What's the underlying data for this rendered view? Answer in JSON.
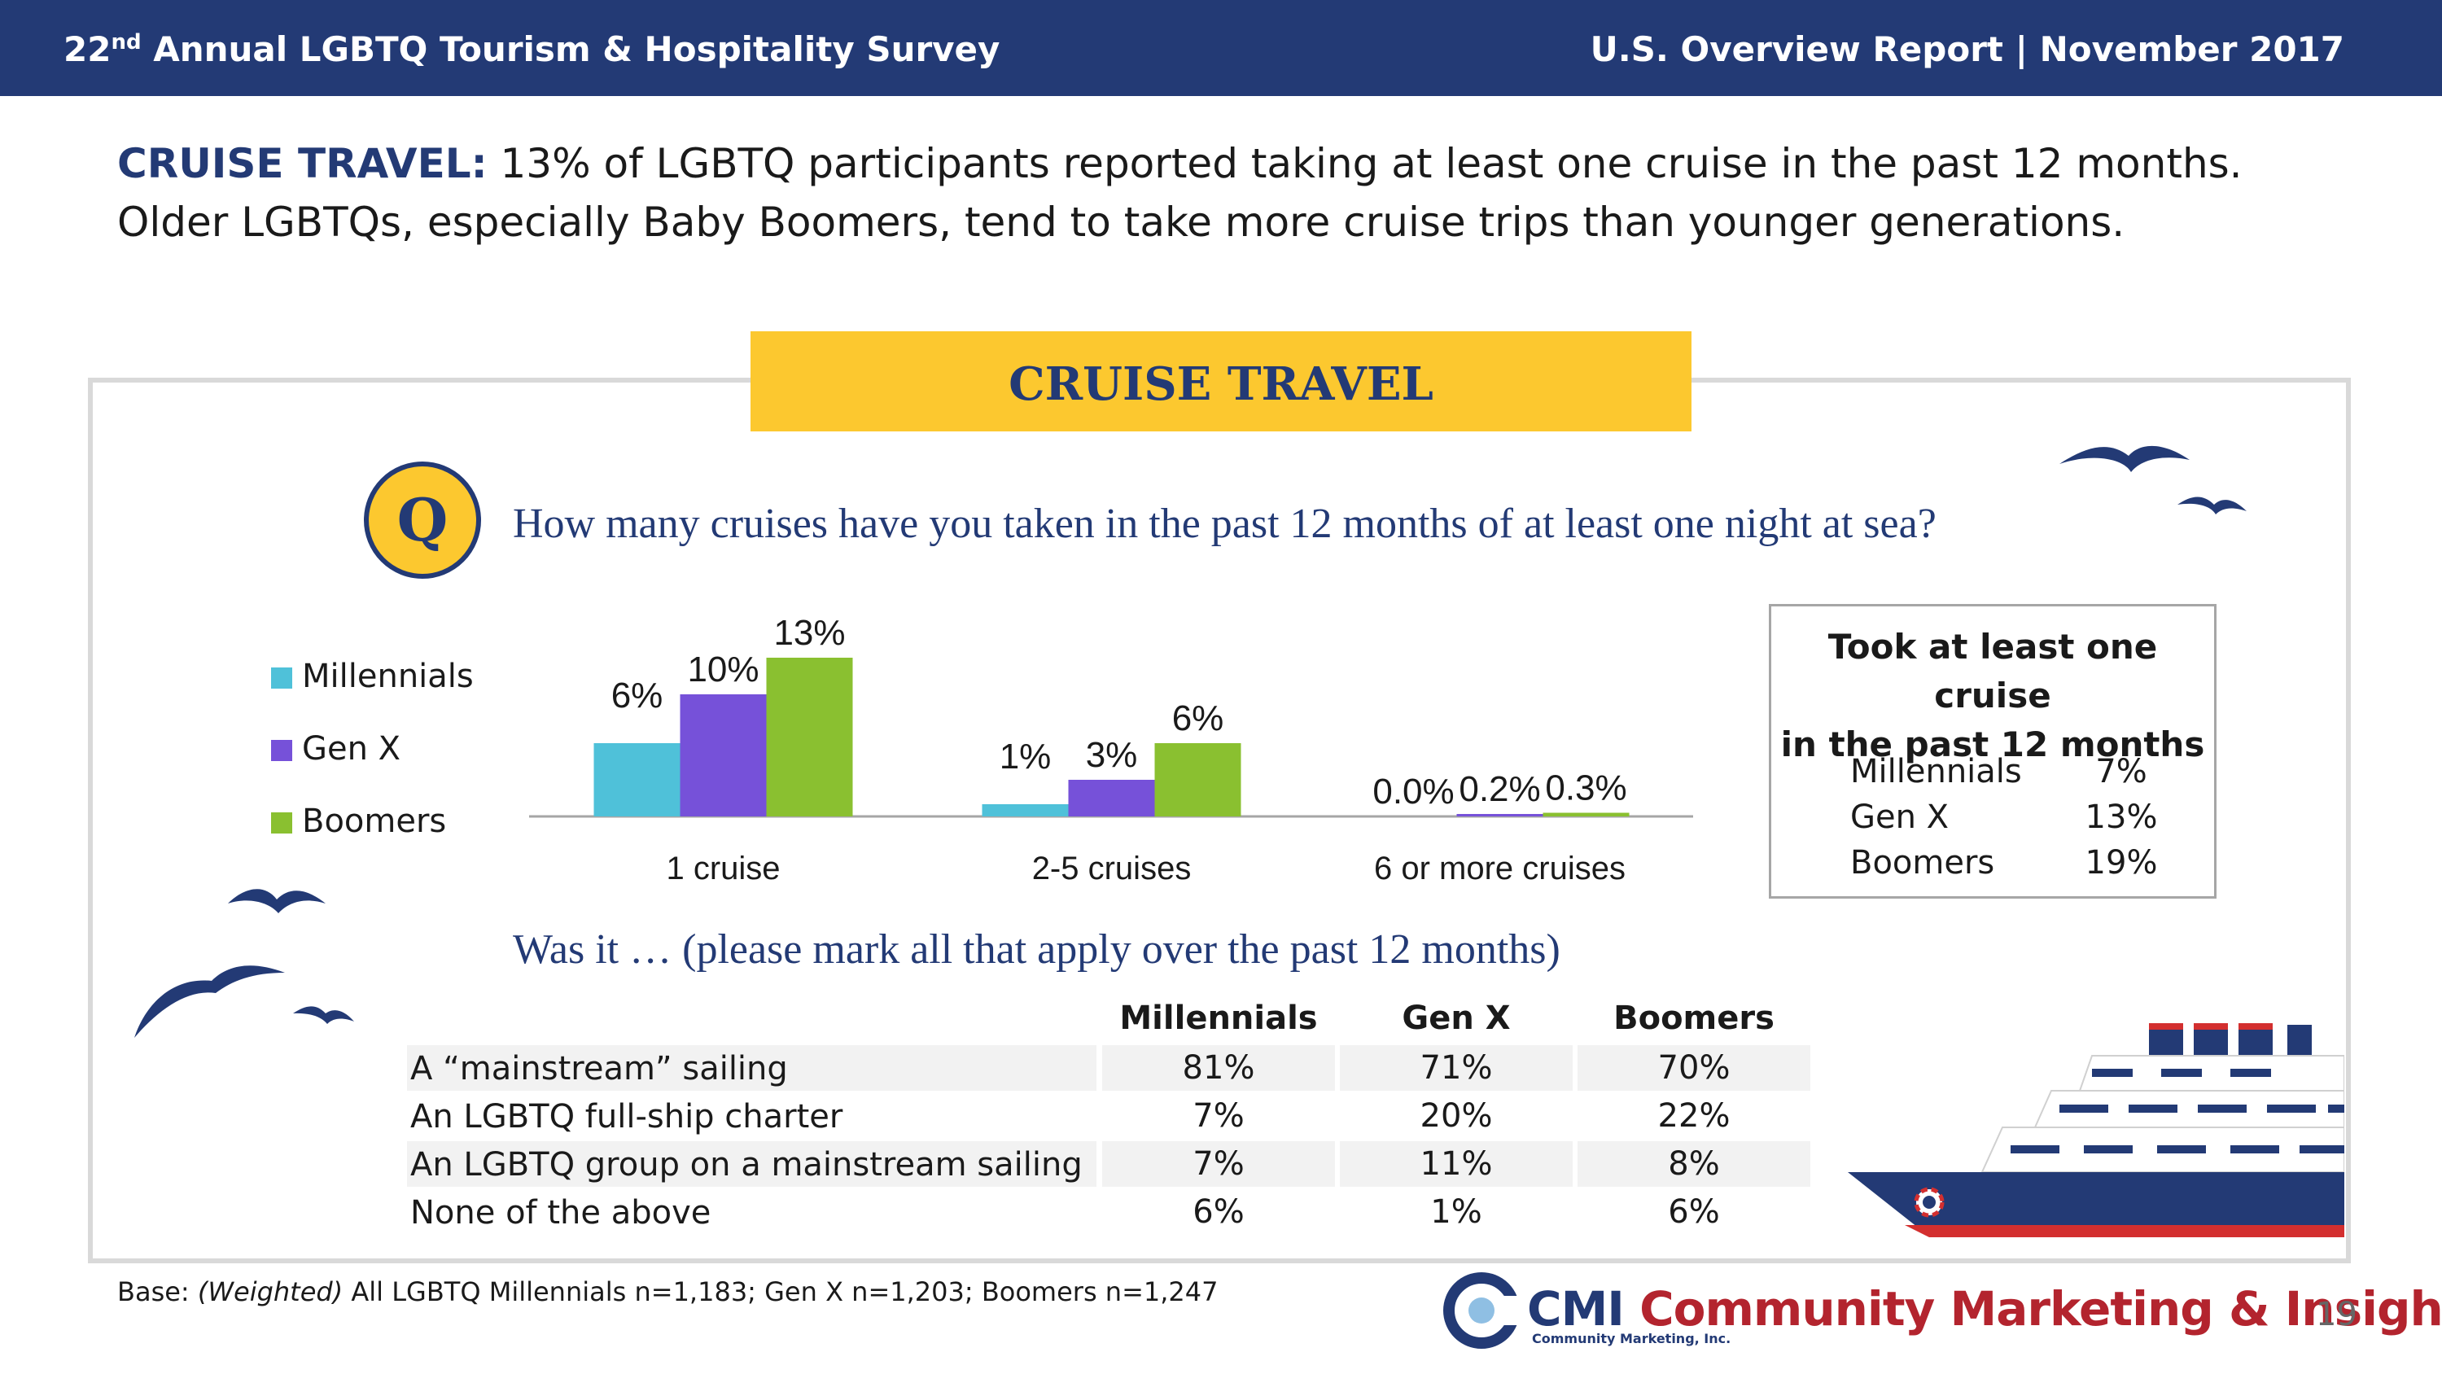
{
  "header": {
    "survey_number": "22",
    "survey_ordinal": "nd",
    "survey_title": " Annual LGBTQ Tourism & Hospitality Survey",
    "report": "U.S. Overview Report | November 2017"
  },
  "headline": {
    "label": "CRUISE TRAVEL:",
    "text": " 13% of LGBTQ participants reported taking at least one cruise in the past 12 months. Older LGBTQs, especially Baby Boomers, tend to take more cruise trips than younger generations."
  },
  "banner": "CRUISE TRAVEL",
  "q_badge": "Q",
  "question": "How many cruises have you taken in the past 12 months of at least one night at sea?",
  "colors": {
    "millennials": "#4fc1d9",
    "genx": "#7651d9",
    "boomers": "#8ac030",
    "navy": "#233a75",
    "gold": "#fcc82f"
  },
  "chart_data": {
    "type": "bar",
    "categories": [
      "1 cruise",
      "2-5 cruises",
      "6 or more cruises"
    ],
    "series": [
      {
        "name": "Millennials",
        "values": [
          6,
          1,
          0.0
        ],
        "labels": [
          "6%",
          "1%",
          "0.0%"
        ]
      },
      {
        "name": "Gen X",
        "values": [
          10,
          3,
          0.2
        ],
        "labels": [
          "10%",
          "3%",
          "0.2%"
        ]
      },
      {
        "name": "Boomers",
        "values": [
          13,
          6,
          0.3
        ],
        "labels": [
          "13%",
          "6%",
          "0.3%"
        ]
      }
    ],
    "ylim": [
      0,
      13
    ],
    "legend": "left",
    "grid": false
  },
  "summary": {
    "title_line1": "Took at least one cruise",
    "title_line2": "in the past 12 months",
    "rows": [
      {
        "label": "Millennials",
        "value": "7%"
      },
      {
        "label": "Gen X",
        "value": "13%"
      },
      {
        "label": "Boomers",
        "value": "19%"
      }
    ]
  },
  "question2": "Was it … (please mark all that apply over the past 12 months)",
  "table": {
    "headers": [
      "Millennials",
      "Gen X",
      "Boomers"
    ],
    "rows": [
      {
        "label": "A “mainstream” sailing",
        "values": [
          "81%",
          "71%",
          "70%"
        ]
      },
      {
        "label": "An LGBTQ full-ship charter",
        "values": [
          "7%",
          "20%",
          "22%"
        ]
      },
      {
        "label": "An LGBTQ group on a mainstream sailing",
        "values": [
          "7%",
          "11%",
          "8%"
        ]
      },
      {
        "label": "None of the above",
        "values": [
          "6%",
          "1%",
          "6%"
        ]
      }
    ]
  },
  "base": {
    "label": "Base: ",
    "italic": "(Weighted)",
    "text": " All LGBTQ Millennials n=1,183; Gen X n=1,203; Boomers n=1,247"
  },
  "brand": {
    "cmi": "CMI",
    "name": " Community Marketing & Insights",
    "sub": "Community Marketing, Inc."
  },
  "page_number": "19"
}
